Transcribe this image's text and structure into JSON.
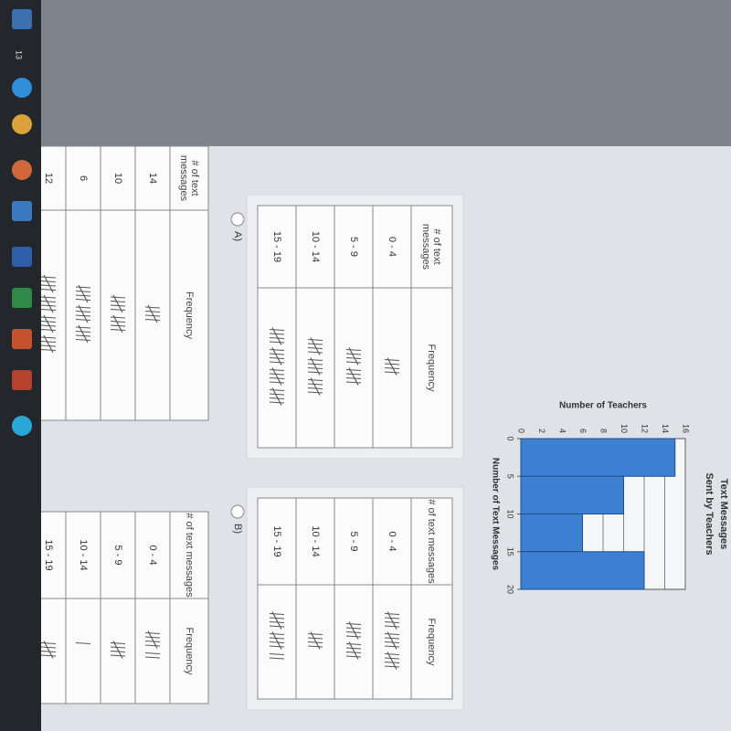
{
  "taskbar": {
    "badge": "13"
  },
  "histogram": {
    "type": "histogram",
    "title": "Text Messages",
    "subtitle": "Sent by Teachers",
    "x_label": "Number of Text Messages",
    "y_label": "Number of Teachers",
    "bins": [
      0,
      5,
      10,
      15,
      20
    ],
    "counts": [
      15,
      10,
      6,
      12
    ],
    "color": "#3d80d2",
    "xlim": [
      0,
      20
    ],
    "xticks": [
      0,
      5,
      10,
      15,
      20
    ],
    "ylim": [
      0,
      16
    ],
    "yticks": [
      0,
      2,
      4,
      6,
      8,
      10,
      12,
      14,
      16
    ],
    "grid": true
  },
  "options": [
    {
      "label": "A)",
      "table": {
        "headers": [
          "# of text messages",
          "Frequency"
        ],
        "rows": [
          [
            "0 - 4",
            5
          ],
          [
            "5 - 9",
            10
          ],
          [
            "10 - 14",
            15
          ],
          [
            "15 - 19",
            20
          ]
        ]
      }
    },
    {
      "label": "B)",
      "table": {
        "headers": [
          "# of text messages",
          "Frequency"
        ],
        "rows": [
          [
            "0 - 4",
            15
          ],
          [
            "5 - 9",
            10
          ],
          [
            "10 - 14",
            5
          ],
          [
            "15 - 19",
            12
          ]
        ]
      }
    },
    {
      "table": {
        "headers": [
          "# of text messages",
          "Frequency"
        ],
        "rows": [
          [
            "14",
            5
          ],
          [
            "10",
            10
          ],
          [
            "6",
            15
          ],
          [
            "12",
            20
          ]
        ]
      }
    },
    {
      "table": {
        "headers": [
          "# of text messages",
          "Frequency"
        ],
        "rows": [
          [
            "0 - 4",
            7
          ],
          [
            "5 - 9",
            5
          ],
          [
            "10 - 14",
            1
          ],
          [
            "15 - 19",
            5
          ]
        ]
      }
    }
  ]
}
